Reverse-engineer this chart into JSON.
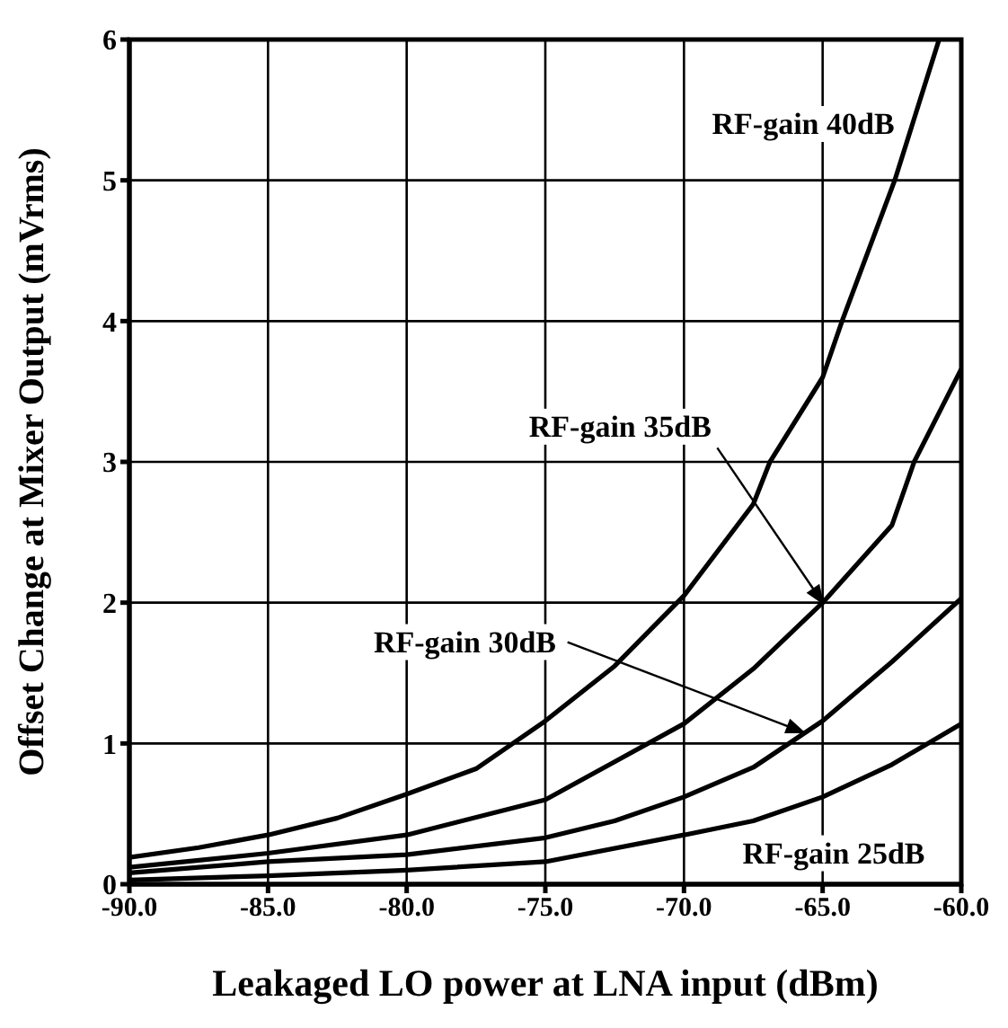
{
  "chart_data": {
    "type": "line",
    "xlabel": "Leakaged LO power at LNA input (dBm)",
    "ylabel": "Offset Change at Mixer Output (mVrms)",
    "xlim": [
      -90,
      -60
    ],
    "ylim": [
      0,
      6
    ],
    "xticks": [
      {
        "value": -90,
        "label": "-90.0"
      },
      {
        "value": -85,
        "label": "-85.0"
      },
      {
        "value": -80,
        "label": "-80.0"
      },
      {
        "value": -75,
        "label": "-75.0"
      },
      {
        "value": -70,
        "label": "-70.0"
      },
      {
        "value": -65,
        "label": "-65.0"
      },
      {
        "value": -60,
        "label": "-60.0"
      }
    ],
    "yticks": [
      0,
      1,
      2,
      3,
      4,
      5,
      6
    ],
    "annotations": [
      {
        "text": "RF-gain 35dB",
        "x": -65,
        "y": 2.0
      },
      {
        "text": "RF-gain 30dB",
        "x": -65.7,
        "y": 1.08
      }
    ],
    "grid": true,
    "legend": false,
    "marker": "none",
    "line_style": "solid",
    "series": [
      {
        "name": "RF-gain 40dB",
        "color": "#000000",
        "x": [
          -90,
          -87.5,
          -85,
          -82.5,
          -80,
          -77.5,
          -75,
          -72.5,
          -70,
          -67.5,
          -66.9,
          -65,
          -64.3,
          -62.4,
          -60.8
        ],
        "values": [
          0.19,
          0.26,
          0.35,
          0.47,
          0.64,
          0.82,
          1.16,
          1.55,
          2.05,
          2.7,
          3.0,
          3.6,
          4.0,
          5.0,
          6.0
        ]
      },
      {
        "color": "#000000",
        "x": [
          -90,
          -85,
          -80,
          -75,
          -72.5,
          -70,
          -67.5,
          -65,
          -62.5,
          -61.7,
          -60
        ],
        "values": [
          0.12,
          0.22,
          0.35,
          0.6,
          0.87,
          1.14,
          1.53,
          2.0,
          2.55,
          3.0,
          3.66
        ]
      },
      {
        "color": "#000000",
        "x": [
          -90,
          -85,
          -80,
          -75,
          -72.5,
          -70,
          -67.5,
          -65,
          -62.5,
          -60
        ],
        "values": [
          0.08,
          0.16,
          0.21,
          0.33,
          0.45,
          0.62,
          0.83,
          1.16,
          1.58,
          2.03
        ]
      },
      {
        "name": "RF-gain 25dB",
        "color": "#000000",
        "x": [
          -90,
          -85,
          -80,
          -75,
          -70,
          -67.5,
          -65,
          -62.5,
          -60
        ],
        "values": [
          0.03,
          0.06,
          0.1,
          0.16,
          0.35,
          0.45,
          0.62,
          0.85,
          1.14
        ]
      }
    ]
  }
}
